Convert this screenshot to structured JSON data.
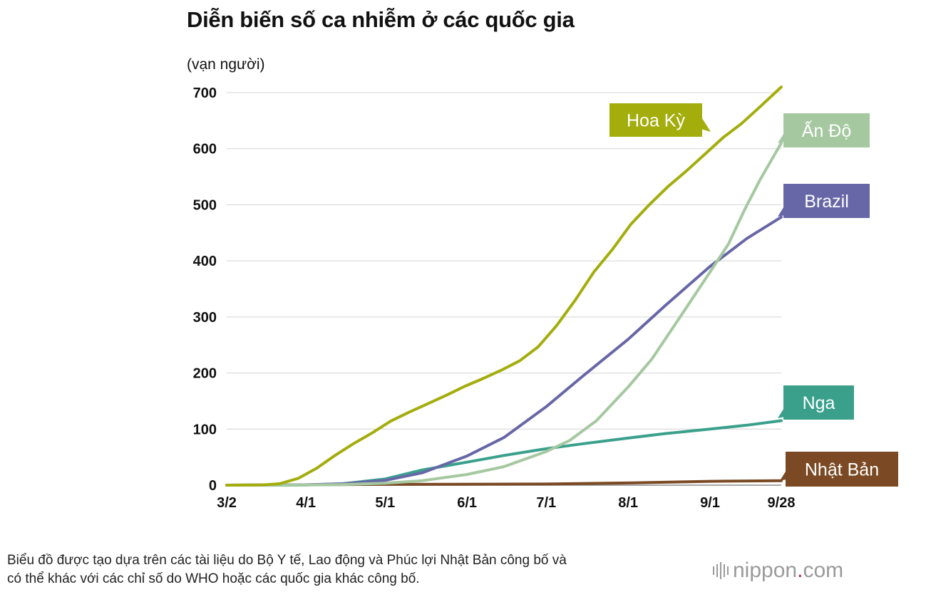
{
  "title": "Diễn biến số ca nhiễm ở các quốc gia",
  "footnote": [
    "Biểu đồ được tạo dựa trên các tài liệu do Bộ Y tế, Lao động và Phúc lợi Nhật Bản công bố và",
    "có thể khác với các chỉ số do WHO hoặc các quốc gia khác công bố."
  ],
  "brand": {
    "name": "nippon",
    "dot": ".",
    "tld": "com"
  },
  "chart_data": {
    "type": "line",
    "title": "Diễn biến số ca nhiễm ở các quốc gia",
    "ylabel": "(vạn người)",
    "xlabel": "",
    "ylim": [
      0,
      700
    ],
    "yticks": [
      0,
      100,
      200,
      300,
      400,
      500,
      600,
      700
    ],
    "xlim": [
      "2020-03-02",
      "2020-09-28"
    ],
    "xticks": [
      {
        "date": "2020-03-02",
        "label": "3/2"
      },
      {
        "date": "2020-04-01",
        "label": "4/1"
      },
      {
        "date": "2020-05-01",
        "label": "5/1"
      },
      {
        "date": "2020-06-01",
        "label": "6/1"
      },
      {
        "date": "2020-07-01",
        "label": "7/1"
      },
      {
        "date": "2020-08-01",
        "label": "8/1"
      },
      {
        "date": "2020-09-01",
        "label": "9/1"
      },
      {
        "date": "2020-09-28",
        "label": "9/28"
      }
    ],
    "grid": true,
    "legend": "inline-end-labels",
    "series": [
      {
        "name": "Hoa Kỳ",
        "color": "#a3ad0c",
        "points": [
          [
            "2020-03-02",
            0
          ],
          [
            "2020-03-15",
            0.3
          ],
          [
            "2020-03-22",
            2.5
          ],
          [
            "2020-03-29",
            12
          ],
          [
            "2020-04-05",
            30
          ],
          [
            "2020-04-12",
            53
          ],
          [
            "2020-04-19",
            74
          ],
          [
            "2020-04-26",
            93
          ],
          [
            "2020-05-03",
            114
          ],
          [
            "2020-05-10",
            130
          ],
          [
            "2020-05-17",
            145
          ],
          [
            "2020-05-24",
            160
          ],
          [
            "2020-05-31",
            176
          ],
          [
            "2020-06-07",
            190
          ],
          [
            "2020-06-14",
            205
          ],
          [
            "2020-06-21",
            222
          ],
          [
            "2020-06-28",
            247
          ],
          [
            "2020-07-05",
            285
          ],
          [
            "2020-07-12",
            330
          ],
          [
            "2020-07-19",
            380
          ],
          [
            "2020-07-26",
            420
          ],
          [
            "2020-08-02",
            465
          ],
          [
            "2020-08-09",
            500
          ],
          [
            "2020-08-16",
            532
          ],
          [
            "2020-08-23",
            560
          ],
          [
            "2020-08-30",
            590
          ],
          [
            "2020-09-06",
            620
          ],
          [
            "2020-09-13",
            645
          ],
          [
            "2020-09-20",
            675
          ],
          [
            "2020-09-28",
            710
          ]
        ]
      },
      {
        "name": "Ấn Độ",
        "color": "#a5c8a0",
        "points": [
          [
            "2020-03-02",
            0
          ],
          [
            "2020-04-01",
            0.2
          ],
          [
            "2020-04-15",
            1.2
          ],
          [
            "2020-05-01",
            3.5
          ],
          [
            "2020-05-15",
            8
          ],
          [
            "2020-06-01",
            19
          ],
          [
            "2020-06-15",
            33
          ],
          [
            "2020-07-01",
            60
          ],
          [
            "2020-07-10",
            80
          ],
          [
            "2020-07-20",
            115
          ],
          [
            "2020-08-01",
            175
          ],
          [
            "2020-08-10",
            225
          ],
          [
            "2020-08-20",
            295
          ],
          [
            "2020-09-01",
            380
          ],
          [
            "2020-09-08",
            430
          ],
          [
            "2020-09-14",
            490
          ],
          [
            "2020-09-20",
            545
          ],
          [
            "2020-09-28",
            610
          ]
        ]
      },
      {
        "name": "Brazil",
        "color": "#6767a8",
        "points": [
          [
            "2020-03-02",
            0
          ],
          [
            "2020-04-01",
            0.6
          ],
          [
            "2020-04-15",
            2.5
          ],
          [
            "2020-05-01",
            8.5
          ],
          [
            "2020-05-15",
            22
          ],
          [
            "2020-06-01",
            52
          ],
          [
            "2020-06-15",
            85
          ],
          [
            "2020-07-01",
            140
          ],
          [
            "2020-07-15",
            195
          ],
          [
            "2020-08-01",
            260
          ],
          [
            "2020-08-15",
            320
          ],
          [
            "2020-09-01",
            390
          ],
          [
            "2020-09-15",
            440
          ],
          [
            "2020-09-28",
            478
          ]
        ]
      },
      {
        "name": "Nga",
        "color": "#3aa08c",
        "points": [
          [
            "2020-03-02",
            0
          ],
          [
            "2020-04-01",
            0.3
          ],
          [
            "2020-04-15",
            2.5
          ],
          [
            "2020-05-01",
            11
          ],
          [
            "2020-05-15",
            27
          ],
          [
            "2020-06-01",
            41
          ],
          [
            "2020-06-15",
            53
          ],
          [
            "2020-07-01",
            65
          ],
          [
            "2020-07-15",
            74
          ],
          [
            "2020-08-01",
            84
          ],
          [
            "2020-08-15",
            92
          ],
          [
            "2020-09-01",
            100
          ],
          [
            "2020-09-15",
            107
          ],
          [
            "2020-09-28",
            115
          ]
        ]
      },
      {
        "name": "Nhật Bản",
        "color": "#7b4a24",
        "points": [
          [
            "2020-03-02",
            0
          ],
          [
            "2020-05-01",
            1.4
          ],
          [
            "2020-07-01",
            2
          ],
          [
            "2020-08-01",
            4
          ],
          [
            "2020-09-01",
            6.8
          ],
          [
            "2020-09-28",
            8
          ]
        ]
      }
    ]
  }
}
